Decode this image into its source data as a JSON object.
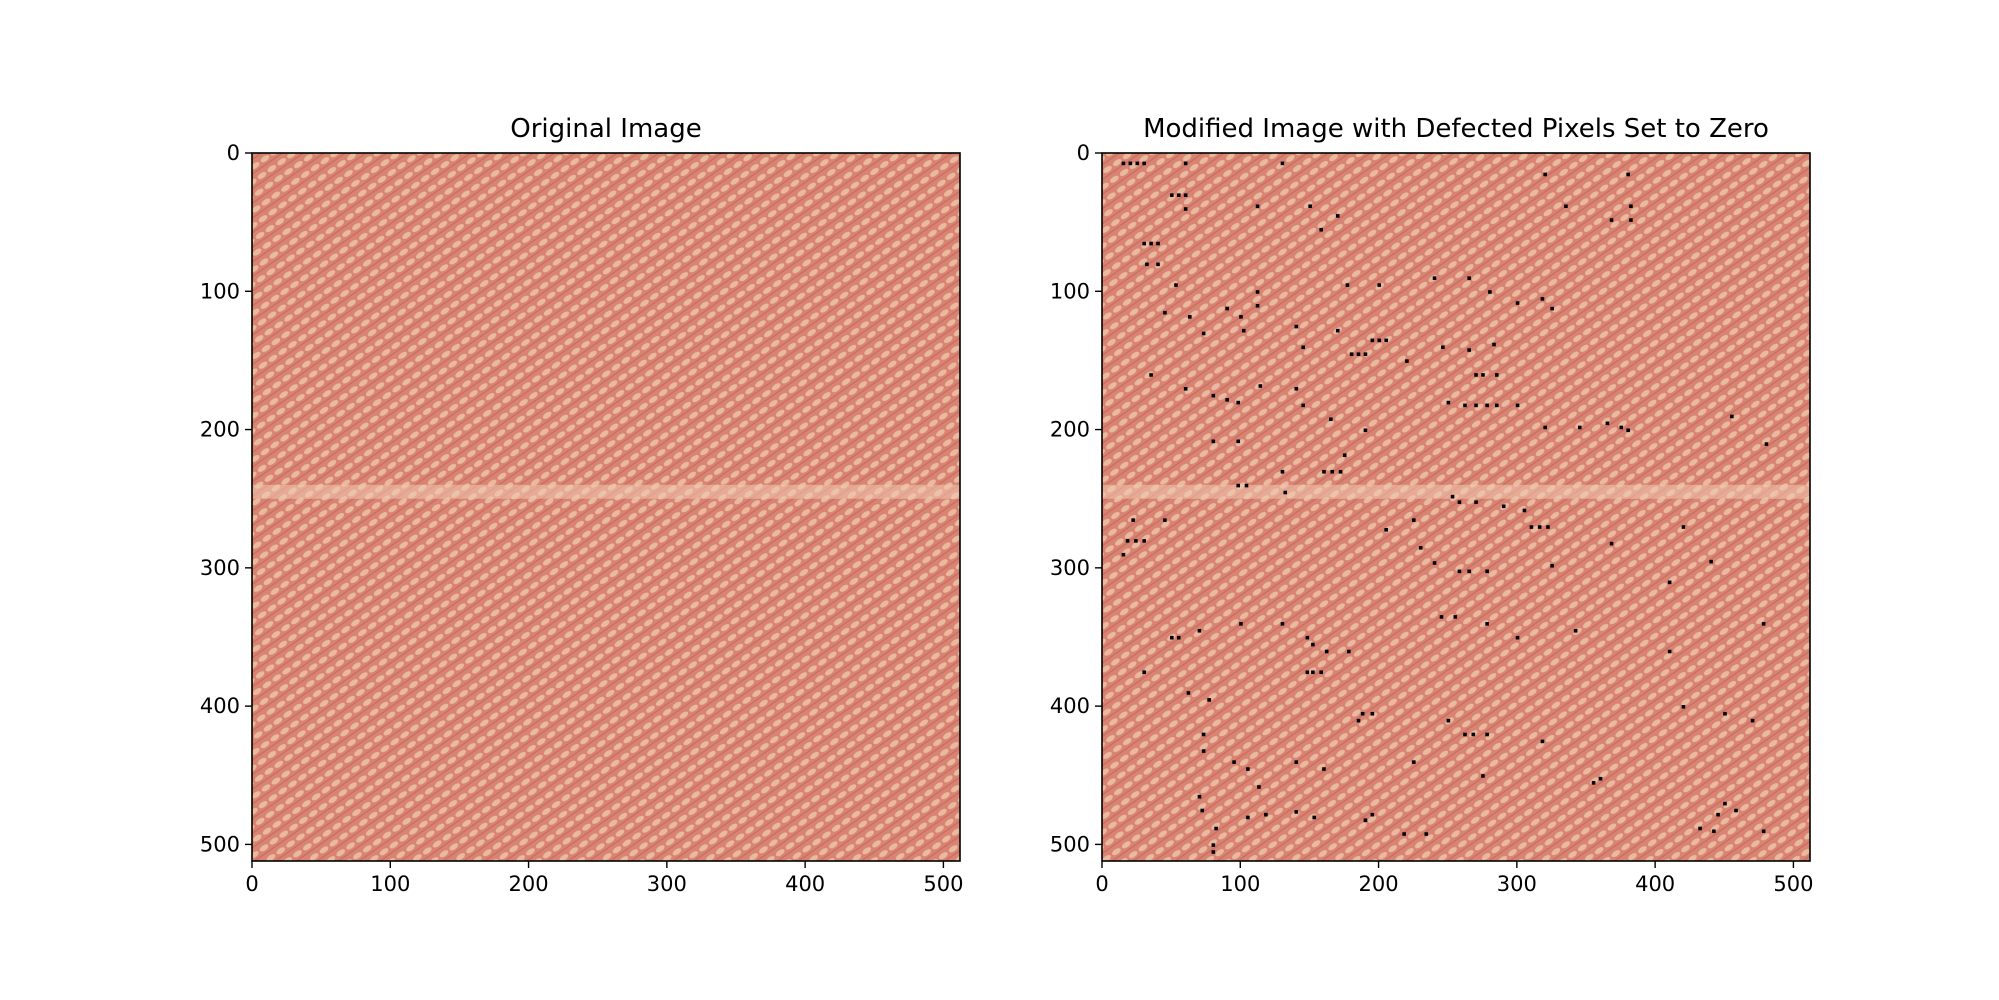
{
  "chart_data": [
    {
      "type": "heatmap",
      "title": "Original Image",
      "xlim": [
        0,
        511
      ],
      "ylim": [
        511,
        0
      ],
      "x_ticks": [
        0,
        100,
        200,
        300,
        400,
        500
      ],
      "y_ticks": [
        0,
        100,
        200,
        300,
        400,
        500
      ],
      "image_size": [
        512,
        512
      ],
      "texture": "diagonal woven fabric pattern",
      "base_color": "#d98372",
      "highlight_color": "#ecc2a8",
      "shadow_color": "#c56a5c",
      "bright_band_row": 245,
      "defect_pixels": []
    },
    {
      "type": "heatmap",
      "title": "Modified Image with Defected Pixels Set to Zero",
      "xlim": [
        0,
        511
      ],
      "ylim": [
        511,
        0
      ],
      "x_ticks": [
        0,
        100,
        200,
        300,
        400,
        500
      ],
      "y_ticks": [
        0,
        100,
        200,
        300,
        400,
        500
      ],
      "image_size": [
        512,
        512
      ],
      "texture": "diagonal woven fabric pattern",
      "base_color": "#d98372",
      "highlight_color": "#ecc2a8",
      "shadow_color": "#c56a5c",
      "bright_band_row": 245,
      "defect_color": "#000000",
      "defect_pixels": [
        [
          15,
          7
        ],
        [
          20,
          7
        ],
        [
          25,
          7
        ],
        [
          30,
          7
        ],
        [
          60,
          7
        ],
        [
          130,
          7
        ],
        [
          320,
          15
        ],
        [
          380,
          15
        ],
        [
          50,
          30
        ],
        [
          55,
          30
        ],
        [
          60,
          30
        ],
        [
          60,
          40
        ],
        [
          112,
          38
        ],
        [
          150,
          38
        ],
        [
          170,
          45
        ],
        [
          335,
          38
        ],
        [
          368,
          48
        ],
        [
          382,
          38
        ],
        [
          382,
          48
        ],
        [
          158,
          55
        ],
        [
          30,
          65
        ],
        [
          35,
          65
        ],
        [
          40,
          65
        ],
        [
          32,
          80
        ],
        [
          40,
          80
        ],
        [
          53,
          95
        ],
        [
          112,
          100
        ],
        [
          112,
          110
        ],
        [
          177,
          95
        ],
        [
          200,
          95
        ],
        [
          240,
          90
        ],
        [
          265,
          90
        ],
        [
          280,
          100
        ],
        [
          300,
          108
        ],
        [
          318,
          105
        ],
        [
          325,
          112
        ],
        [
          45,
          115
        ],
        [
          63,
          118
        ],
        [
          90,
          112
        ],
        [
          100,
          118
        ],
        [
          140,
          125
        ],
        [
          170,
          128
        ],
        [
          195,
          135
        ],
        [
          200,
          135
        ],
        [
          205,
          135
        ],
        [
          180,
          145
        ],
        [
          185,
          145
        ],
        [
          190,
          145
        ],
        [
          73,
          130
        ],
        [
          102,
          128
        ],
        [
          145,
          140
        ],
        [
          220,
          150
        ],
        [
          246,
          140
        ],
        [
          265,
          142
        ],
        [
          283,
          138
        ],
        [
          270,
          160
        ],
        [
          275,
          160
        ],
        [
          285,
          160
        ],
        [
          35,
          160
        ],
        [
          60,
          170
        ],
        [
          80,
          175
        ],
        [
          90,
          178
        ],
        [
          98,
          180
        ],
        [
          114,
          168
        ],
        [
          140,
          170
        ],
        [
          145,
          182
        ],
        [
          165,
          192
        ],
        [
          250,
          180
        ],
        [
          262,
          182
        ],
        [
          270,
          182
        ],
        [
          278,
          182
        ],
        [
          285,
          182
        ],
        [
          300,
          182
        ],
        [
          320,
          198
        ],
        [
          345,
          198
        ],
        [
          365,
          195
        ],
        [
          375,
          198
        ],
        [
          380,
          200
        ],
        [
          455,
          190
        ],
        [
          480,
          210
        ],
        [
          80,
          208
        ],
        [
          98,
          208
        ],
        [
          175,
          218
        ],
        [
          190,
          200
        ],
        [
          130,
          230
        ],
        [
          160,
          230
        ],
        [
          166,
          230
        ],
        [
          172,
          230
        ],
        [
          98,
          240
        ],
        [
          104,
          240
        ],
        [
          132,
          245
        ],
        [
          253,
          248
        ],
        [
          270,
          252
        ],
        [
          258,
          252
        ],
        [
          290,
          255
        ],
        [
          305,
          258
        ],
        [
          310,
          270
        ],
        [
          316,
          270
        ],
        [
          322,
          270
        ],
        [
          205,
          272
        ],
        [
          18,
          280
        ],
        [
          24,
          280
        ],
        [
          30,
          280
        ],
        [
          15,
          290
        ],
        [
          22,
          265
        ],
        [
          45,
          265
        ],
        [
          225,
          265
        ],
        [
          230,
          285
        ],
        [
          240,
          296
        ],
        [
          258,
          302
        ],
        [
          265,
          302
        ],
        [
          278,
          302
        ],
        [
          325,
          298
        ],
        [
          368,
          282
        ],
        [
          420,
          270
        ],
        [
          440,
          295
        ],
        [
          410,
          310
        ],
        [
          50,
          350
        ],
        [
          55,
          350
        ],
        [
          70,
          345
        ],
        [
          100,
          340
        ],
        [
          130,
          340
        ],
        [
          148,
          350
        ],
        [
          152,
          355
        ],
        [
          162,
          360
        ],
        [
          178,
          360
        ],
        [
          245,
          335
        ],
        [
          255,
          335
        ],
        [
          278,
          340
        ],
        [
          300,
          350
        ],
        [
          342,
          345
        ],
        [
          410,
          360
        ],
        [
          478,
          340
        ],
        [
          30,
          375
        ],
        [
          148,
          375
        ],
        [
          152,
          375
        ],
        [
          158,
          375
        ],
        [
          62,
          390
        ],
        [
          77,
          395
        ],
        [
          185,
          410
        ],
        [
          188,
          405
        ],
        [
          195,
          405
        ],
        [
          250,
          410
        ],
        [
          262,
          420
        ],
        [
          268,
          420
        ],
        [
          278,
          420
        ],
        [
          318,
          425
        ],
        [
          420,
          400
        ],
        [
          450,
          405
        ],
        [
          470,
          410
        ],
        [
          73,
          420
        ],
        [
          73,
          432
        ],
        [
          95,
          440
        ],
        [
          105,
          445
        ],
        [
          113,
          458
        ],
        [
          140,
          440
        ],
        [
          160,
          445
        ],
        [
          225,
          440
        ],
        [
          275,
          450
        ],
        [
          355,
          455
        ],
        [
          360,
          452
        ],
        [
          445,
          478
        ],
        [
          450,
          470
        ],
        [
          458,
          475
        ],
        [
          70,
          465
        ],
        [
          72,
          475
        ],
        [
          82,
          488
        ],
        [
          80,
          500
        ],
        [
          80,
          505
        ],
        [
          105,
          480
        ],
        [
          118,
          478
        ],
        [
          140,
          476
        ],
        [
          153,
          480
        ],
        [
          195,
          478
        ],
        [
          218,
          492
        ],
        [
          234,
          492
        ],
        [
          432,
          488
        ],
        [
          442,
          490
        ],
        [
          478,
          490
        ],
        [
          190,
          482
        ]
      ]
    }
  ]
}
